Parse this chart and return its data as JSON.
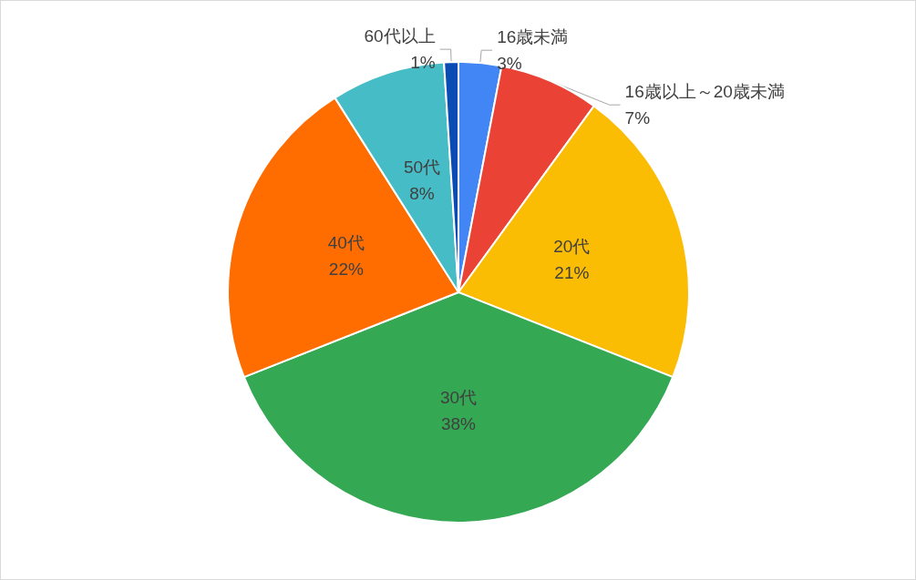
{
  "chart_data": {
    "type": "pie",
    "categories": [
      "16歳未満",
      "16歳以上～20歳未満",
      "20代",
      "30代",
      "40代",
      "50代",
      "60代以上"
    ],
    "values": [
      3,
      7,
      21,
      38,
      22,
      8,
      1
    ],
    "value_labels": [
      "3%",
      "7%",
      "21%",
      "38%",
      "22%",
      "8%",
      "1%"
    ],
    "colors": [
      "#4285f4",
      "#ea4335",
      "#fbbc04",
      "#34a853",
      "#ff6d01",
      "#46bdc6",
      "#0b4cb4"
    ],
    "legend": false
  }
}
